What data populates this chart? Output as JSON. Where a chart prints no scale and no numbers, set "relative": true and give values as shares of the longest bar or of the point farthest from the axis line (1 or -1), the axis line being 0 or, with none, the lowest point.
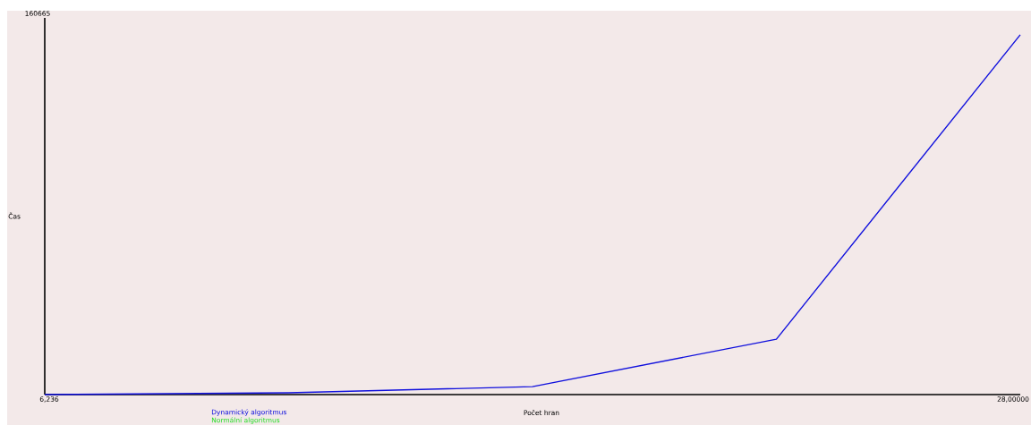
{
  "chart_data": {
    "type": "line",
    "xlabel": "Počet hran",
    "ylabel": "Čas",
    "relative": true,
    "annotations": [
      "160665",
      "6,236",
      "28,00000"
    ],
    "categories": [
      null,
      null,
      null,
      null,
      null
    ],
    "series": [
      {
        "name": "Dynamický algoritmus",
        "color": "#1010dd",
        "values": [
          0,
          0.005,
          0.022,
          0.154,
          1
        ]
      },
      {
        "name": "Normální algoritmus",
        "color": "#22dd22",
        "values": [
          null,
          null,
          null,
          null,
          null
        ]
      }
    ],
    "grid": false,
    "legend": "bottom",
    "marker": "none",
    "line_style": "solid"
  }
}
